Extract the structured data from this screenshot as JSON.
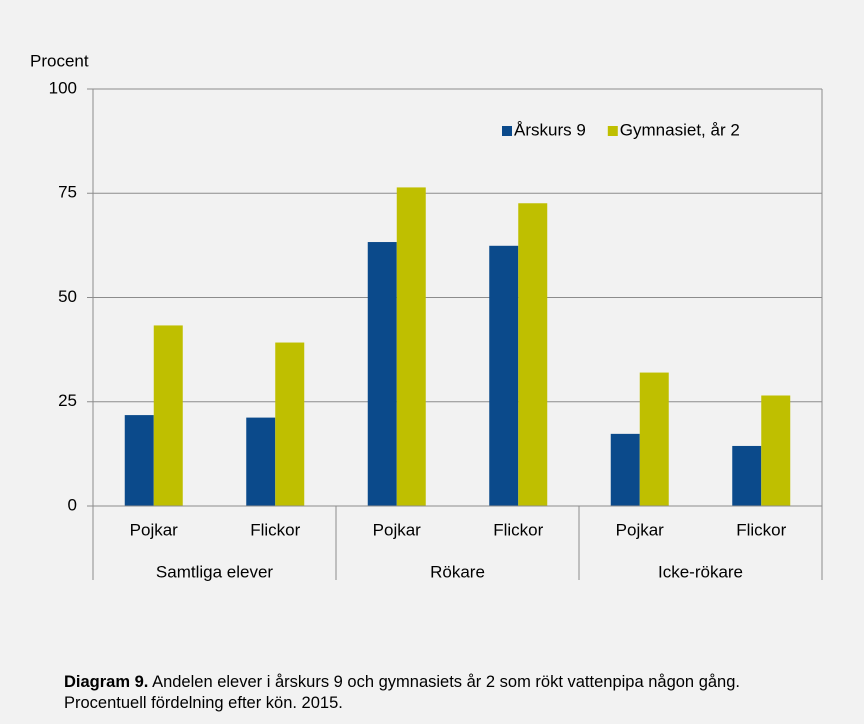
{
  "chart_data": {
    "type": "bar",
    "y_label": "Procent",
    "categories": [
      "Pojkar",
      "Flickor",
      "Pojkar",
      "Flickor",
      "Pojkar",
      "Flickor"
    ],
    "groups": [
      "Samtliga elever",
      "Rökare",
      "Icke-rökare"
    ],
    "series": [
      {
        "name": "Årskurs 9",
        "color": "#0b4a8b",
        "values": [
          21.8,
          21.2,
          63.3,
          62.4,
          17.3,
          14.4
        ]
      },
      {
        "name": "Gymnasiet, år 2",
        "color": "#bfbf00",
        "values": [
          43.3,
          39.2,
          76.4,
          72.6,
          32.0,
          26.5
        ]
      }
    ],
    "ylim": [
      0,
      100
    ],
    "yticks": [
      0,
      25,
      50,
      75,
      100
    ],
    "grid": true,
    "legend": "upper right",
    "caption_label": "Diagram 9.",
    "caption": "Andelen elever i årskurs 9 och gymnasiets år 2 som rökt vattenpipa någon gång. Procentuell fördelning efter kön. 2015."
  }
}
